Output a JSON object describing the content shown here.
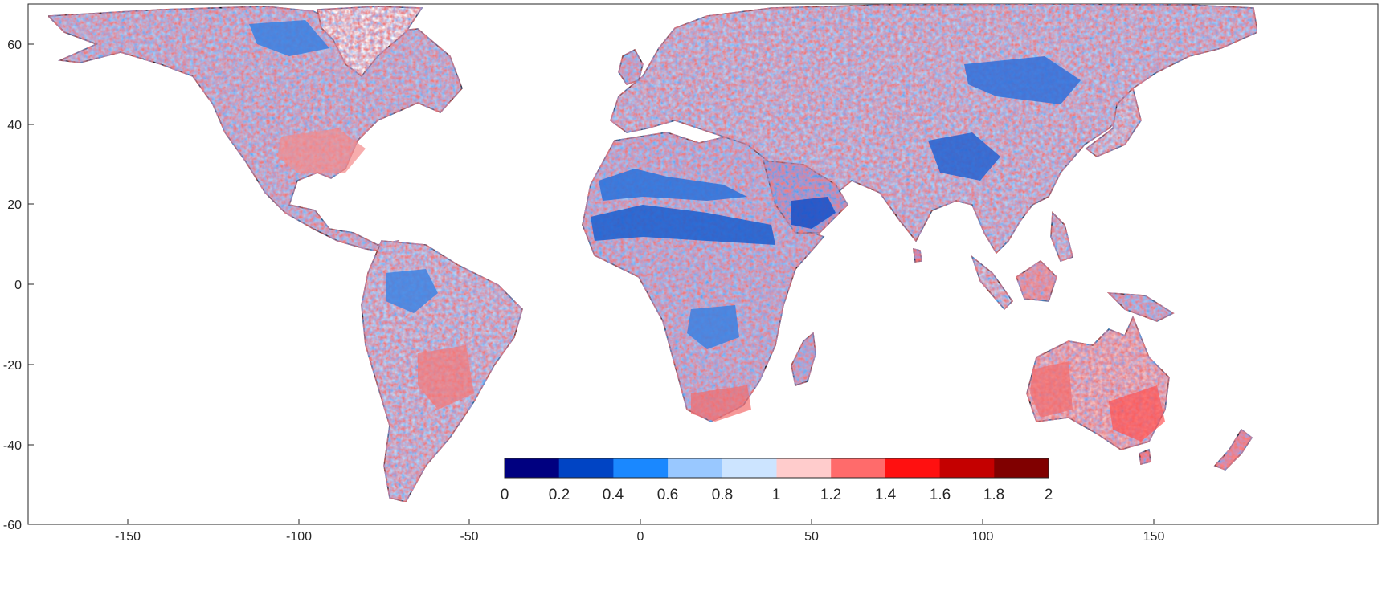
{
  "map": {
    "x_ticks": [
      "-150",
      "-100",
      "-50",
      "0",
      "50",
      "100",
      "150"
    ],
    "x_tick_values": [
      -150,
      -100,
      -50,
      0,
      50,
      100,
      150
    ],
    "y_ticks": [
      "60",
      "40",
      "20",
      "0",
      "-20",
      "-40",
      "-60"
    ],
    "y_tick_values": [
      60,
      40,
      20,
      0,
      -20,
      -40,
      -60
    ],
    "lon_range": [
      -180,
      180
    ],
    "lat_range": [
      -60,
      70
    ],
    "ocean_color": "#ffffff",
    "coastline_color": "#000000"
  },
  "colorbar": {
    "labels": [
      "0",
      "0.2",
      "0.4",
      "0.6",
      "0.8",
      "1",
      "1.2",
      "1.4",
      "1.6",
      "1.8",
      "2"
    ],
    "colors": [
      "#000080",
      "#0044c4",
      "#1a88ff",
      "#99c8ff",
      "#cce4ff",
      "#ffcccc",
      "#ff6b6b",
      "#ff1010",
      "#c40000",
      "#800000"
    ],
    "range": [
      0,
      2
    ]
  }
}
